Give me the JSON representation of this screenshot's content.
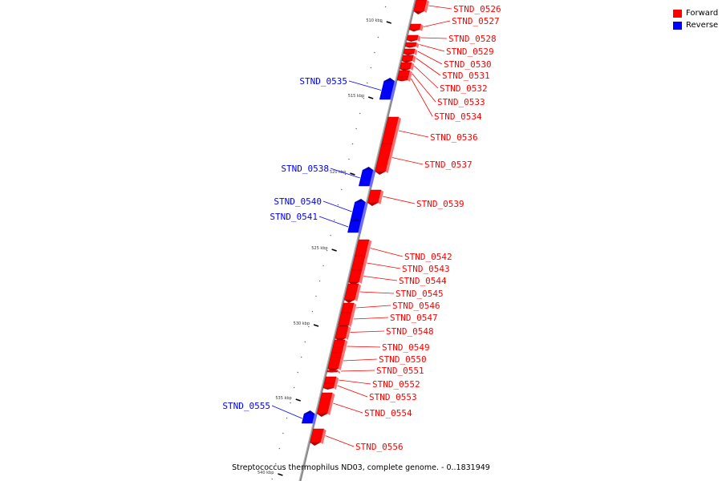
{
  "legend": {
    "forward_label": "Forward",
    "reverse_label": "Reverse",
    "forward_color": "#ff0000",
    "reverse_color": "#0000ff"
  },
  "caption": "Streptococcus thermophilus ND03, complete genome. - 0..1831949",
  "axis_ticks": [
    "510 kbp",
    "515 kbp",
    "520 kbp",
    "525 kbp",
    "530 kbp",
    "535 kbp",
    "540 kbp"
  ],
  "genes": [
    {
      "name": "STND_0526",
      "strand": "forward"
    },
    {
      "name": "STND_0527",
      "strand": "forward"
    },
    {
      "name": "STND_0528",
      "strand": "forward"
    },
    {
      "name": "STND_0529",
      "strand": "forward"
    },
    {
      "name": "STND_0530",
      "strand": "forward"
    },
    {
      "name": "STND_0531",
      "strand": "forward"
    },
    {
      "name": "STND_0532",
      "strand": "forward"
    },
    {
      "name": "STND_0533",
      "strand": "forward"
    },
    {
      "name": "STND_0534",
      "strand": "forward"
    },
    {
      "name": "STND_0535",
      "strand": "reverse"
    },
    {
      "name": "STND_0536",
      "strand": "forward"
    },
    {
      "name": "STND_0537",
      "strand": "forward"
    },
    {
      "name": "STND_0538",
      "strand": "reverse"
    },
    {
      "name": "STND_0539",
      "strand": "forward"
    },
    {
      "name": "STND_0540",
      "strand": "reverse"
    },
    {
      "name": "STND_0541",
      "strand": "reverse"
    },
    {
      "name": "STND_0542",
      "strand": "forward"
    },
    {
      "name": "STND_0543",
      "strand": "forward"
    },
    {
      "name": "STND_0544",
      "strand": "forward"
    },
    {
      "name": "STND_0545",
      "strand": "forward"
    },
    {
      "name": "STND_0546",
      "strand": "forward"
    },
    {
      "name": "STND_0547",
      "strand": "forward"
    },
    {
      "name": "STND_0548",
      "strand": "forward"
    },
    {
      "name": "STND_0549",
      "strand": "forward"
    },
    {
      "name": "STND_0550",
      "strand": "forward"
    },
    {
      "name": "STND_0551",
      "strand": "forward"
    },
    {
      "name": "STND_0552",
      "strand": "forward"
    },
    {
      "name": "STND_0553",
      "strand": "forward"
    },
    {
      "name": "STND_0554",
      "strand": "forward"
    },
    {
      "name": "STND_0555",
      "strand": "reverse"
    },
    {
      "name": "STND_0556",
      "strand": "forward"
    }
  ]
}
